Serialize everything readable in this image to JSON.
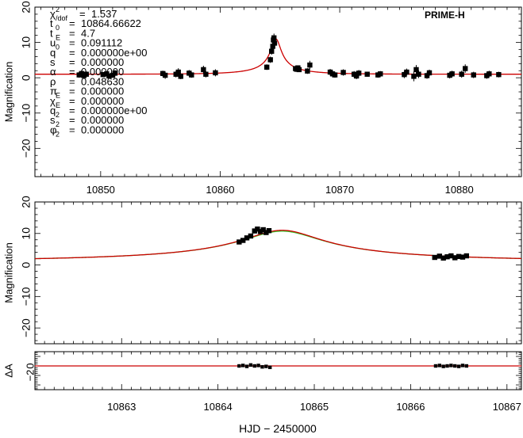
{
  "chart_data": [
    {
      "type": "scatter",
      "panel": "top",
      "xlim": [
        10844.5,
        10885.2
      ],
      "ylim": [
        -28,
        20
      ],
      "ylabel": "Magnification",
      "label": "PRIME-H",
      "xticks": [
        10850,
        10860,
        10870,
        10880
      ],
      "yticks": [
        20,
        10,
        0,
        -10,
        -20
      ],
      "ytick_labels": [
        "20",
        "10",
        "0",
        "−10",
        "−20"
      ],
      "params": [
        {
          "sym": "χ",
          "sup": "2",
          "sub": "/dof",
          "eq": "=",
          "val": "1.537"
        },
        {
          "sym": "t",
          "sup": "",
          "sub": "0",
          "eq": "=",
          "val": "10864.66622"
        },
        {
          "sym": "t",
          "sup": "",
          "sub": "E",
          "eq": "=",
          "val": "4.7"
        },
        {
          "sym": "u",
          "sup": "",
          "sub": "0",
          "eq": "=",
          "val": "0.091112"
        },
        {
          "sym": "q",
          "sup": "",
          "sub": "",
          "eq": "=",
          "val": "0.000000e+00"
        },
        {
          "sym": "s",
          "sup": "",
          "sub": "",
          "eq": "=",
          "val": "0.000000"
        },
        {
          "sym": "α",
          "sup": "",
          "sub": "",
          "eq": "=",
          "val": "0.000000"
        },
        {
          "sym": "ρ",
          "sup": "",
          "sub": "",
          "eq": "=",
          "val": "0.048630"
        },
        {
          "sym": "π",
          "sup": "",
          "sub": "E",
          "eq": "=",
          "val": "0.000000"
        },
        {
          "sym": "χ",
          "sup": "",
          "sub": "E",
          "eq": "=",
          "val": "0.000000"
        },
        {
          "sym": "q",
          "sup": "",
          "sub": "2",
          "eq": "=",
          "val": "0.000000e+00"
        },
        {
          "sym": "s",
          "sup": "",
          "sub": "2",
          "eq": "=",
          "val": "0.000000"
        },
        {
          "sym": "φ",
          "sup": "",
          "sub": "2",
          "eq": "=",
          "val": "0.000000"
        }
      ],
      "model": {
        "t0": 10864.66622,
        "tE": 4.7,
        "u0": 0.091112,
        "color": "#cc0000"
      },
      "points": [
        [
          10848.2,
          0.8,
          0.8
        ],
        [
          10848.4,
          1.2,
          0.9
        ],
        [
          10848.6,
          0.6,
          0.7
        ],
        [
          10848.8,
          1.0,
          0.8
        ],
        [
          10850.2,
          0.9,
          0.7
        ],
        [
          10850.5,
          1.1,
          0.8
        ],
        [
          10850.7,
          0.5,
          0.7
        ],
        [
          10851.0,
          0.7,
          0.6
        ],
        [
          10851.2,
          1.3,
          0.9
        ],
        [
          10855.2,
          1.2,
          0.8
        ],
        [
          10855.4,
          0.7,
          1.0
        ],
        [
          10856.3,
          1.0,
          0.9
        ],
        [
          10856.5,
          1.6,
          1.1
        ],
        [
          10856.7,
          0.4,
          0.8
        ],
        [
          10857.4,
          1.3,
          0.9
        ],
        [
          10857.6,
          0.8,
          0.8
        ],
        [
          10858.6,
          2.3,
          1.1
        ],
        [
          10858.8,
          1.0,
          0.9
        ],
        [
          10859.6,
          1.4,
          1.0
        ],
        [
          10863.9,
          3.0,
          0.8
        ],
        [
          10864.2,
          5.1,
          0.9
        ],
        [
          10864.3,
          7.5,
          1.0
        ],
        [
          10864.4,
          8.9,
          1.1
        ],
        [
          10864.45,
          10.7,
          1.2
        ],
        [
          10864.5,
          11.3,
          1.2
        ],
        [
          10864.55,
          9.8,
          1.0
        ],
        [
          10866.3,
          2.6,
          0.7
        ],
        [
          10866.4,
          2.4,
          0.6
        ],
        [
          10866.5,
          2.8,
          0.7
        ],
        [
          10866.6,
          2.3,
          0.6
        ],
        [
          10867.3,
          1.9,
          0.8
        ],
        [
          10867.5,
          3.6,
          1.2
        ],
        [
          10869.2,
          1.6,
          0.9
        ],
        [
          10869.4,
          1.1,
          1.0
        ],
        [
          10869.6,
          0.8,
          0.8
        ],
        [
          10870.3,
          1.5,
          0.9
        ],
        [
          10871.2,
          1.0,
          0.9
        ],
        [
          10871.4,
          0.5,
          0.9
        ],
        [
          10871.6,
          1.3,
          0.9
        ],
        [
          10872.3,
          1.0,
          0.7
        ],
        [
          10873.2,
          0.8,
          0.8
        ],
        [
          10873.4,
          1.1,
          0.8
        ],
        [
          10875.4,
          0.9,
          1.0
        ],
        [
          10875.6,
          1.6,
          1.0
        ],
        [
          10876.2,
          0.4,
          1.4
        ],
        [
          10876.4,
          2.3,
          1.3
        ],
        [
          10876.6,
          1.0,
          1.1
        ],
        [
          10877.3,
          0.6,
          0.9
        ],
        [
          10877.5,
          1.4,
          0.9
        ],
        [
          10879.2,
          0.7,
          0.9
        ],
        [
          10879.4,
          1.1,
          0.9
        ],
        [
          10880.2,
          1.0,
          1.0
        ],
        [
          10880.5,
          2.6,
          1.2
        ],
        [
          10881.2,
          0.8,
          0.9
        ],
        [
          10882.3,
          0.6,
          0.9
        ],
        [
          10882.5,
          1.1,
          0.9
        ],
        [
          10883.3,
          0.9,
          0.8
        ]
      ]
    },
    {
      "type": "scatter",
      "panel": "middle",
      "xlim": [
        10862.1,
        10867.15
      ],
      "ylim": [
        -25,
        20
      ],
      "ylabel": "Magnification",
      "yticks": [
        20,
        10,
        0,
        -10,
        -20
      ],
      "ytick_labels": [
        "20",
        "10",
        "0",
        "−10",
        "−20"
      ],
      "models": [
        {
          "name": "model-red",
          "t0": 10864.66622,
          "tE": 4.7,
          "u0": 0.091112,
          "color": "#cc0000"
        },
        {
          "name": "model-green",
          "t0": 10864.66622,
          "tE": 4.7,
          "u0": 0.0935,
          "color": "#33cc33"
        }
      ],
      "points": [
        [
          10864.22,
          7.3,
          0.4
        ],
        [
          10864.26,
          7.8,
          0.4
        ],
        [
          10864.3,
          8.6,
          0.4
        ],
        [
          10864.34,
          9.2,
          0.5
        ],
        [
          10864.38,
          10.8,
          0.5
        ],
        [
          10864.41,
          11.4,
          0.5
        ],
        [
          10864.44,
          10.6,
          0.5
        ],
        [
          10864.47,
          11.2,
          0.5
        ],
        [
          10864.5,
          10.3,
          0.5
        ],
        [
          10864.53,
          10.9,
          0.5
        ],
        [
          10866.25,
          2.4,
          0.3
        ],
        [
          10866.3,
          2.8,
          0.3
        ],
        [
          10866.34,
          2.2,
          0.3
        ],
        [
          10866.38,
          2.6,
          0.3
        ],
        [
          10866.42,
          2.9,
          0.3
        ],
        [
          10866.46,
          2.3,
          0.3
        ],
        [
          10866.5,
          2.7,
          0.3
        ],
        [
          10866.54,
          2.5,
          0.3
        ],
        [
          10866.58,
          2.9,
          0.3
        ]
      ]
    },
    {
      "type": "scatter",
      "panel": "residual",
      "xlim": [
        10862.1,
        10867.15
      ],
      "ylim": [
        -5,
        3
      ],
      "ylabel": "ΔA",
      "xlabel": "HJD − 2450000",
      "xticks": [
        10863,
        10864,
        10865,
        10866,
        10867
      ],
      "yticks": [
        0,
        -2
      ],
      "ytick_labels": [
        "0",
        "−2"
      ],
      "zero_color": "#cc0000",
      "points": [
        [
          10864.22,
          0.0
        ],
        [
          10864.26,
          0.1
        ],
        [
          10864.3,
          -0.1
        ],
        [
          10864.34,
          0.2
        ],
        [
          10864.38,
          0.0
        ],
        [
          10864.42,
          0.1
        ],
        [
          10864.46,
          -0.2
        ],
        [
          10864.5,
          -0.1
        ],
        [
          10864.54,
          -0.3
        ],
        [
          10866.26,
          0.0
        ],
        [
          10866.3,
          0.1
        ],
        [
          10866.34,
          -0.1
        ],
        [
          10866.38,
          0.0
        ],
        [
          10866.42,
          0.1
        ],
        [
          10866.46,
          0.0
        ],
        [
          10866.5,
          -0.1
        ],
        [
          10866.54,
          0.1
        ],
        [
          10866.58,
          0.0
        ]
      ]
    }
  ]
}
